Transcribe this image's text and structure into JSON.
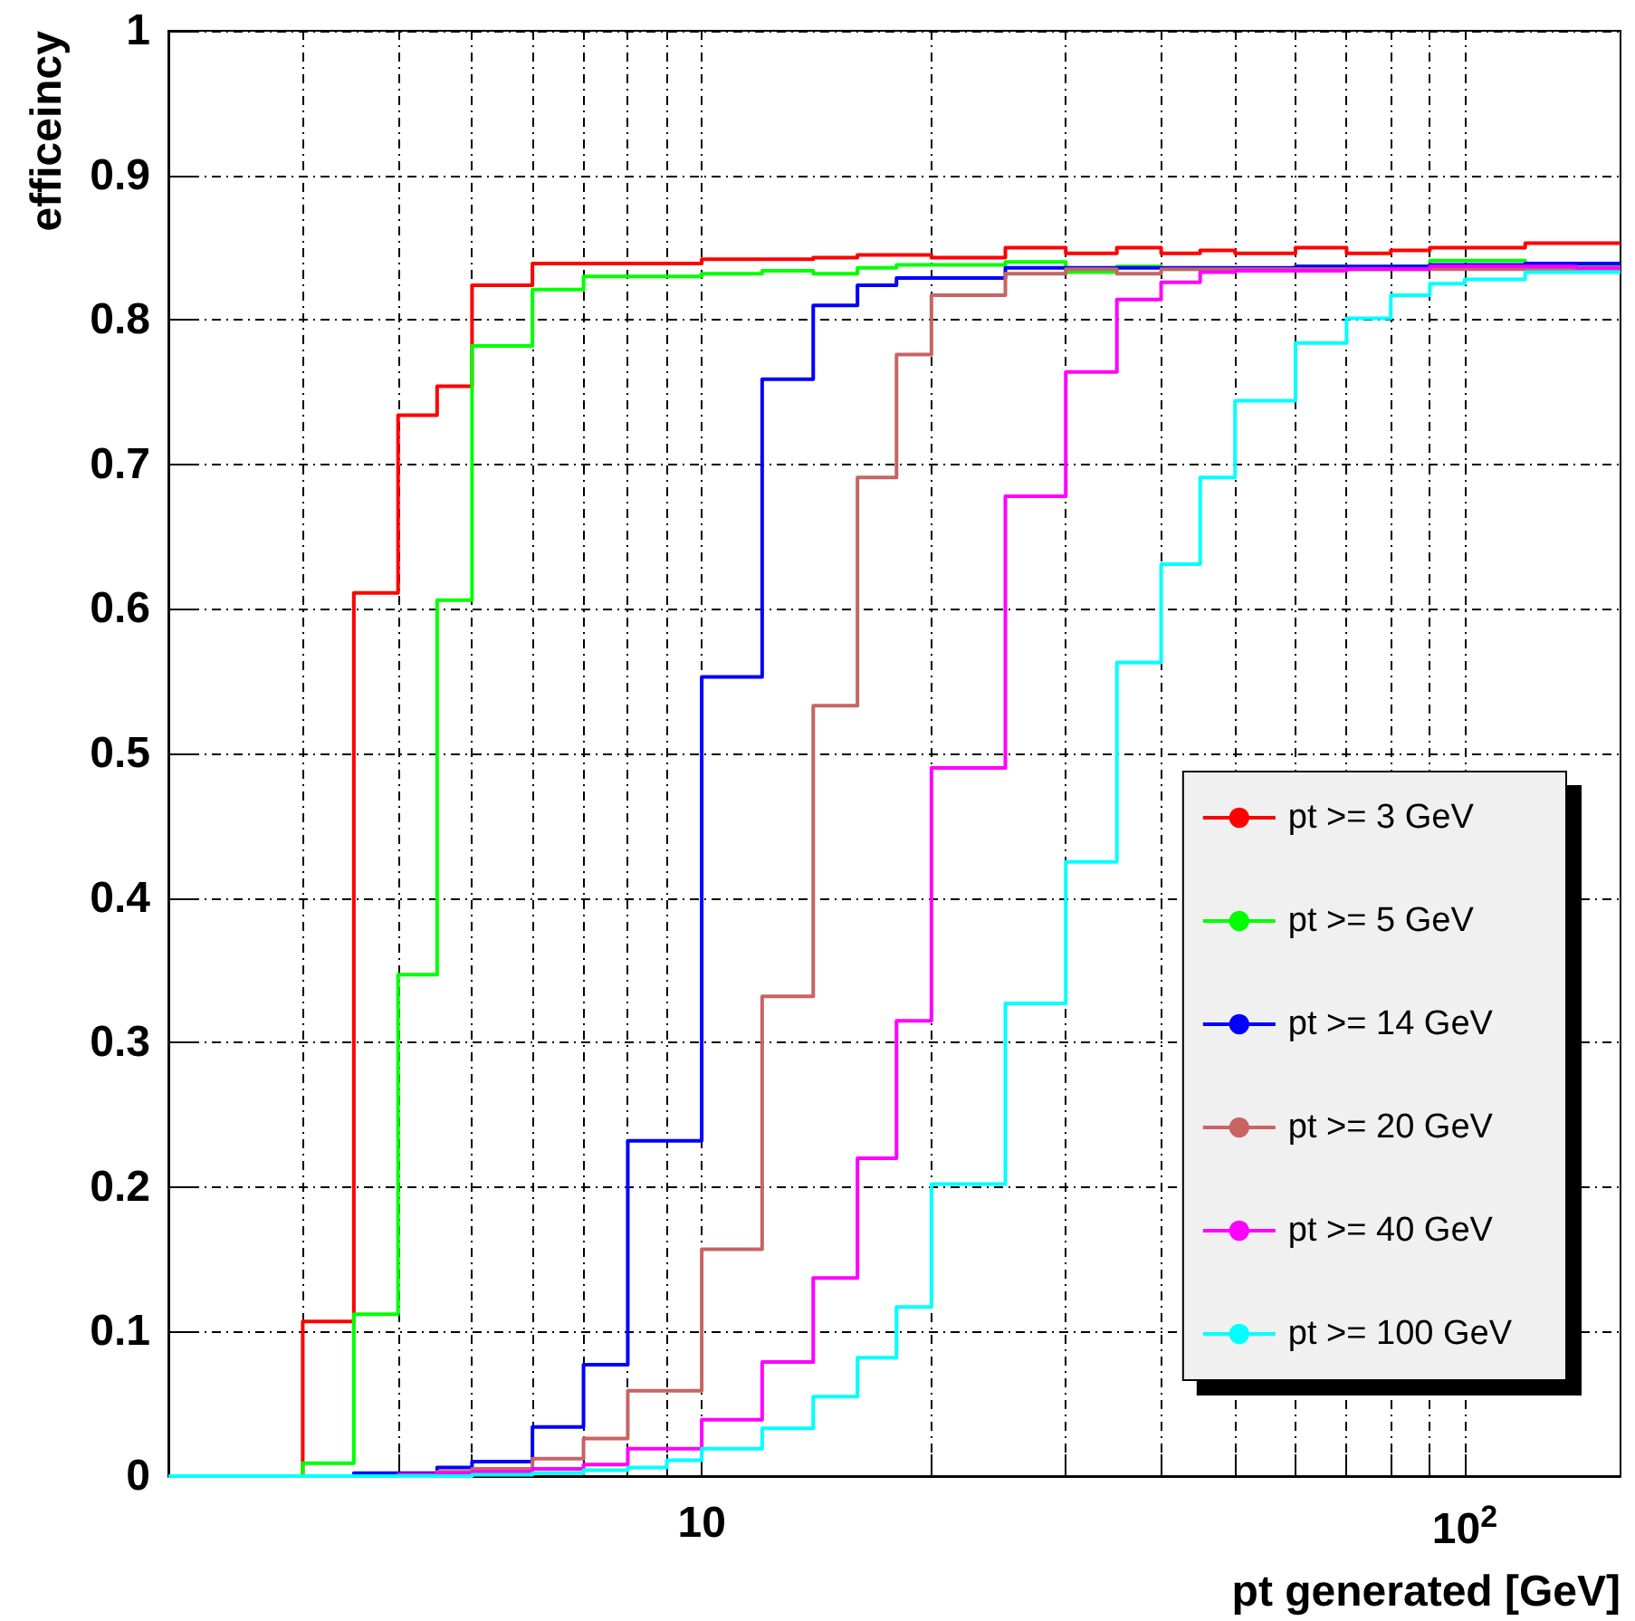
{
  "chart_data": {
    "type": "histogram",
    "xlabel": "pt generated [GeV]",
    "ylabel": "efficeincy",
    "bins": [
      2,
      2.5,
      3,
      3.5,
      4,
      4.5,
      5,
      6,
      7,
      8,
      9,
      10,
      12,
      14,
      16,
      18,
      20,
      25,
      30,
      35,
      40,
      45,
      50,
      60,
      70,
      80,
      90,
      100,
      120,
      140,
      160
    ],
    "series": [
      {
        "name": "pt >= 3 GeV",
        "color": "#ff0000",
        "values": [
          0,
          0,
          0.107,
          0.611,
          0.734,
          0.754,
          0.824,
          0.839,
          0.839,
          0.839,
          0.839,
          0.842,
          0.842,
          0.843,
          0.845,
          0.845,
          0.843,
          0.85,
          0.846,
          0.85,
          0.846,
          0.848,
          0.846,
          0.85,
          0.846,
          0.848,
          0.85,
          0.85,
          0.853,
          0.853
        ]
      },
      {
        "name": "pt >= 5 GeV",
        "color": "#00ff00",
        "values": [
          0,
          0,
          0.009,
          0.112,
          0.347,
          0.606,
          0.782,
          0.821,
          0.83,
          0.83,
          0.83,
          0.832,
          0.834,
          0.832,
          0.836,
          0.838,
          0.838,
          0.84,
          0.833,
          0.837,
          0.835,
          0.834,
          0.834,
          0.837,
          0.835,
          0.837,
          0.841,
          0.841,
          0.839,
          0.837
        ]
      },
      {
        "name": "pt >= 14 GeV",
        "color": "#0000ff",
        "values": [
          0,
          0,
          0,
          0.002,
          0.002,
          0.006,
          0.01,
          0.034,
          0.077,
          0.232,
          0.232,
          0.553,
          0.759,
          0.81,
          0.824,
          0.829,
          0.829,
          0.836,
          0.836,
          0.836,
          0.836,
          0.836,
          0.836,
          0.837,
          0.837,
          0.837,
          0.838,
          0.838,
          0.839,
          0.839
        ]
      },
      {
        "name": "pt >= 20 GeV",
        "color": "#c86464",
        "values": [
          0,
          0,
          0,
          0,
          0.001,
          0.003,
          0.005,
          0.012,
          0.026,
          0.059,
          0.059,
          0.157,
          0.332,
          0.533,
          0.691,
          0.776,
          0.817,
          0.832,
          0.835,
          0.832,
          0.835,
          0.835,
          0.835,
          0.835,
          0.835,
          0.835,
          0.835,
          0.835,
          0.835,
          0.835
        ]
      },
      {
        "name": "pt >= 40 GeV",
        "color": "#ff00ff",
        "values": [
          0,
          0,
          0,
          0,
          0.001,
          0.002,
          0.003,
          0.005,
          0.008,
          0.019,
          0.019,
          0.039,
          0.079,
          0.137,
          0.22,
          0.315,
          0.49,
          0.678,
          0.764,
          0.814,
          0.826,
          0.833,
          0.834,
          0.834,
          0.835,
          0.835,
          0.837,
          0.837,
          0.837,
          0.836
        ]
      },
      {
        "name": "pt >= 100 GeV",
        "color": "#00ffff",
        "values": [
          0,
          0,
          0,
          0,
          0,
          0,
          0.001,
          0.002,
          0.004,
          0.006,
          0.011,
          0.019,
          0.033,
          0.055,
          0.082,
          0.117,
          0.202,
          0.327,
          0.425,
          0.563,
          0.631,
          0.691,
          0.744,
          0.784,
          0.801,
          0.817,
          0.825,
          0.828,
          0.833,
          0.833
        ]
      }
    ],
    "log": "x",
    "xlim": [
      2,
      160
    ],
    "xticks": [
      {
        "value": 3,
        "label": null
      },
      {
        "value": 4,
        "label": null
      },
      {
        "value": 5,
        "label": null
      },
      {
        "value": 6,
        "label": null
      },
      {
        "value": 7,
        "label": null
      },
      {
        "value": 8,
        "label": null
      },
      {
        "value": 9,
        "label": null
      },
      {
        "value": 10,
        "label": "10"
      },
      {
        "value": 20,
        "label": null
      },
      {
        "value": 30,
        "label": null
      },
      {
        "value": 40,
        "label": null
      },
      {
        "value": 50,
        "label": null
      },
      {
        "value": 60,
        "label": null
      },
      {
        "value": 70,
        "label": null
      },
      {
        "value": 80,
        "label": null
      },
      {
        "value": 90,
        "label": null
      },
      {
        "value": 100,
        "label": "10$^{2}$"
      }
    ],
    "ylim": [
      0,
      1
    ],
    "yticks": [
      0,
      0.1,
      0.2,
      0.3,
      0.4,
      0.5,
      0.6,
      0.7,
      0.8,
      0.9,
      1
    ],
    "grid": true,
    "legend": "bottom right",
    "line_style": "solid"
  }
}
